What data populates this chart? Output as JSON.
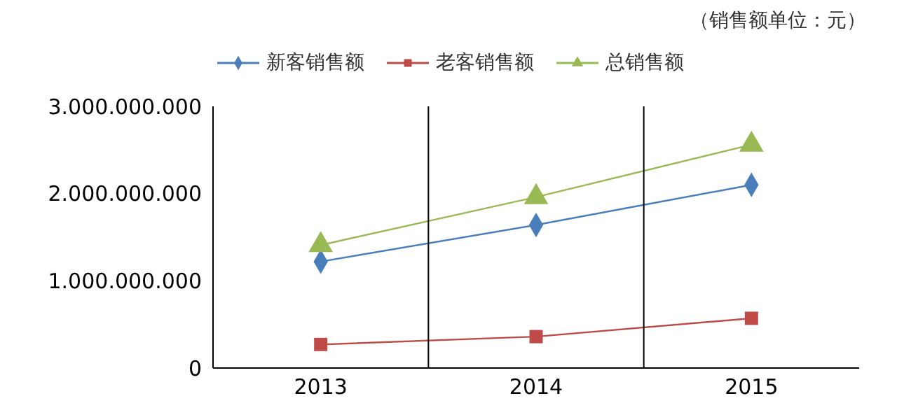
{
  "chart_data": {
    "type": "line",
    "annotations": [
      "（销售额单位：元）"
    ],
    "categories": [
      "2013",
      "2014",
      "2015"
    ],
    "series": [
      {
        "name": "新客销售额",
        "color": "#4a7ebb",
        "marker": "diamond",
        "values": [
          1220000000,
          1640000000,
          2100000000
        ]
      },
      {
        "name": "老客销售额",
        "color": "#be4b48",
        "marker": "square",
        "values": [
          270000000,
          360000000,
          570000000
        ]
      },
      {
        "name": "总销售额",
        "color": "#98b954",
        "marker": "triangle",
        "values": [
          1410000000,
          1960000000,
          2560000000
        ]
      }
    ],
    "ylim": [
      0,
      3000000000
    ],
    "yticks": [
      0,
      {
        "value": 1000000000,
        "label": "1.000.000.000"
      },
      {
        "value": 2000000000,
        "label": "2.000.000.000"
      },
      {
        "value": 3000000000,
        "label": "3.000.000.000"
      }
    ],
    "legend": "top"
  }
}
